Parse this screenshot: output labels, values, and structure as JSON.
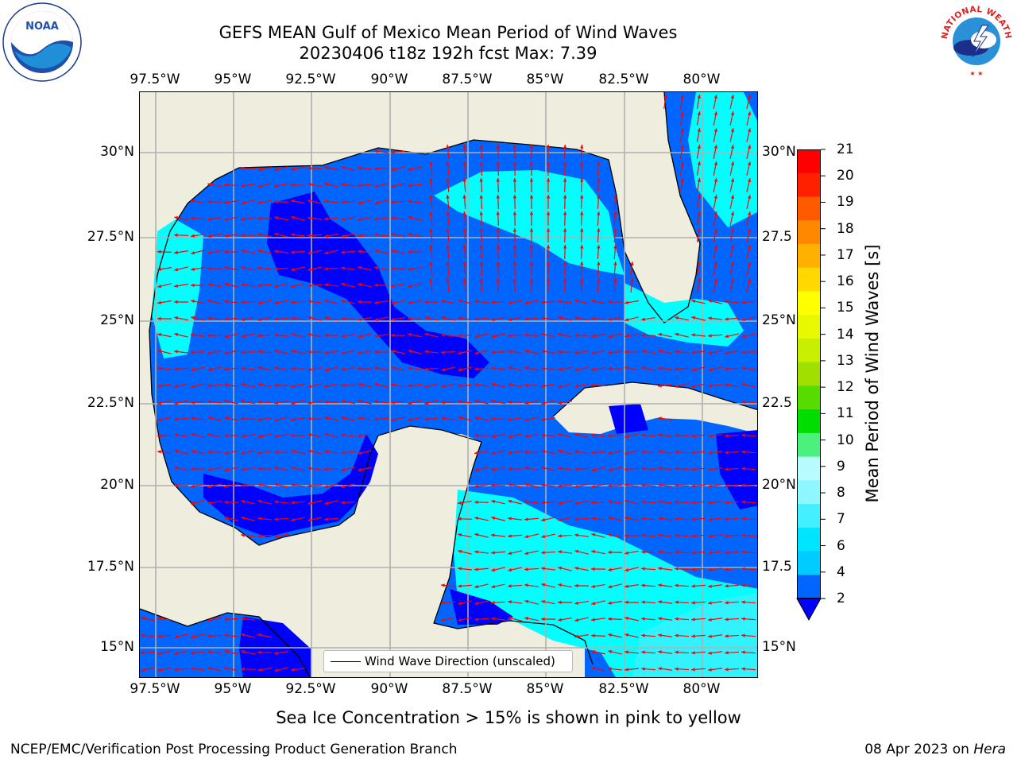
{
  "title": {
    "line1": "GEFS MEAN Gulf of Mexico Mean Period of Wind Waves",
    "line2": "20230406 t18z 192h fcst   Max: 7.39"
  },
  "axes": {
    "lon_ticks": [
      "97.5°W",
      "95°W",
      "92.5°W",
      "90°W",
      "87.5°W",
      "85°W",
      "82.5°W",
      "80°W"
    ],
    "lat_ticks_left": [
      "30°N",
      "27.5°N",
      "25°N",
      "22.5°N",
      "20°N",
      "17.5°N",
      "15°N"
    ],
    "lat_ticks_right": [
      "30°N",
      "27.5",
      "25°N",
      "22.5",
      "20°N",
      "17.5",
      "15°N"
    ]
  },
  "legend": {
    "label": "Wind Wave Direction (unscaled)"
  },
  "colorbar": {
    "title": "Mean Period of Wind Waves [s]",
    "labels": [
      "2",
      "4",
      "6",
      "7",
      "8",
      "9",
      "10",
      "11",
      "12",
      "13",
      "14",
      "15",
      "16",
      "17",
      "18",
      "19",
      "20",
      "21"
    ],
    "colors": [
      "#0066ff",
      "#00ccff",
      "#00e5ff",
      "#44f0ff",
      "#8ff7ff",
      "#b8fcff",
      "#4cf07c",
      "#00dd00",
      "#55dd00",
      "#a0e000",
      "#c8ee00",
      "#e8f800",
      "#ffff00",
      "#ffd800",
      "#ffb000",
      "#ff8800",
      "#ff5a00",
      "#ff2000",
      "#ff0000"
    ],
    "under_color": "#0000ff"
  },
  "map_colors": {
    "land": "#efedde",
    "period_2_4": "#0066ff",
    "period_below_2": "#0000ff",
    "period_4_6": "#00ffff",
    "period_6_7": "#44eeff",
    "arrow": "#ff0000",
    "grid": "#b0b0b0"
  },
  "notes": {
    "ice": "Sea Ice Concentration > 15% is shown in pink to yellow",
    "footer_left": "NCEP/EMC/Verification Post Processing Product Generation Branch",
    "footer_date": "08 Apr 2023 on ",
    "footer_host": "Hera"
  },
  "logos": {
    "left": "noaa-logo",
    "right": "national-weather-service-logo",
    "nws_text": "NATIONAL WEATHER SERVICE"
  }
}
